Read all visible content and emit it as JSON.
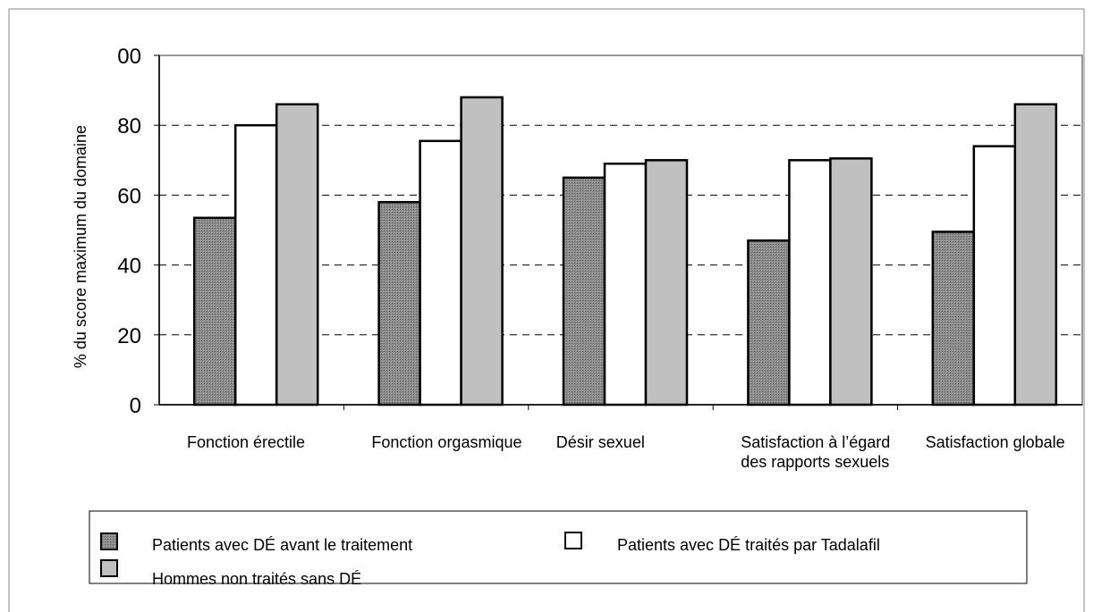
{
  "chart_data": {
    "type": "bar",
    "y_label": "% du score maximum du domaine",
    "categories": [
      "Fonction érectile",
      "Fonction orgasmique",
      "Désir sexuel",
      "Satisfaction à l’égard des rapports sexuels",
      "Satisfaction globale"
    ],
    "series": [
      {
        "name": "Patients avec DÉ avant le traitement",
        "color": "#8a8a8a",
        "values": [
          53.5,
          58,
          65,
          47,
          49.5
        ]
      },
      {
        "name": "Patients avec DÉ traités par Tadalafil",
        "color": "#ffffff",
        "values": [
          80,
          75.5,
          69,
          70,
          74
        ]
      },
      {
        "name": "Hommes non traités sans DÉ",
        "color": "#c0c0c0",
        "values": [
          86,
          88,
          70,
          70.5,
          86
        ]
      }
    ],
    "ylim": [
      0,
      100
    ],
    "yticks": [
      0,
      20,
      40,
      60,
      80,
      {
        "value": 100,
        "label": "00"
      }
    ],
    "grid": true
  }
}
